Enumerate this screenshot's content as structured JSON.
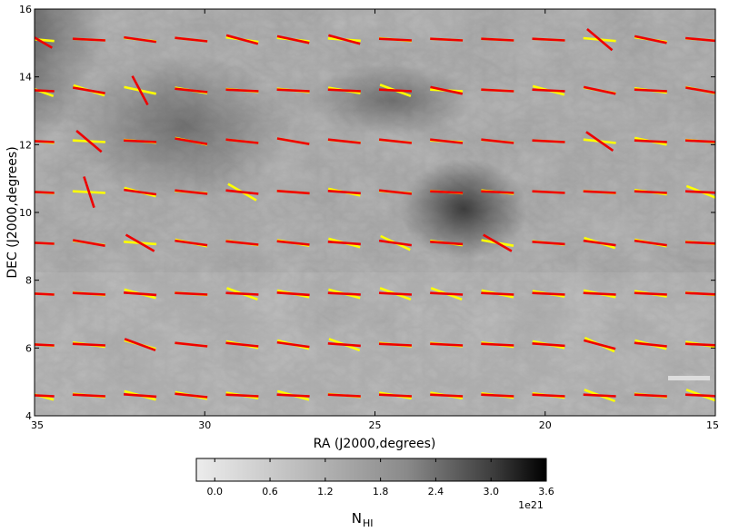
{
  "chart_data": {
    "type": "heatmap",
    "title": "",
    "xlabel": "RA (J2000,degrees)",
    "ylabel": "DEC (J2000,degrees)",
    "xlim": [
      35,
      15
    ],
    "ylim": [
      4,
      16
    ],
    "x_ticks": [
      35,
      30,
      25,
      20,
      15
    ],
    "y_ticks": [
      4,
      6,
      8,
      10,
      12,
      14,
      16
    ],
    "x_tick_labels": [
      "35",
      "30",
      "25",
      "20",
      "15"
    ],
    "y_tick_labels": [
      "4",
      "6",
      "8",
      "10",
      "12",
      "14",
      "16"
    ],
    "colormap": "gray_r",
    "colorbar": {
      "label": "N",
      "label_sub": "HI",
      "min": -0.2,
      "max": 3.6,
      "ticks": [
        0.0,
        0.6,
        1.2,
        1.8,
        2.4,
        3.0,
        3.6
      ],
      "tick_labels": [
        "0.0",
        "0.6",
        "1.2",
        "1.8",
        "2.4",
        "3.0",
        "3.6"
      ],
      "exponent_label": "1e21"
    },
    "vector_grid": {
      "ra": [
        34.9,
        33.4,
        31.9,
        30.4,
        28.9,
        27.4,
        25.9,
        24.4,
        22.9,
        21.4,
        19.9,
        18.4,
        16.9,
        15.4
      ],
      "dec": [
        15.1,
        13.6,
        12.1,
        10.6,
        9.1,
        7.6,
        6.1,
        4.6
      ],
      "series": [
        {
          "name": "yellow",
          "color": "#ffff00",
          "angles_deg": [
            [
              -5,
              -3,
              -6,
              -6,
              -8,
              -6,
              -4,
              -5,
              -3,
              -3,
              -3,
              -5,
              -8,
              -4
            ],
            [
              -20,
              -18,
              -12,
              -10,
              -5,
              -6,
              -10,
              -20,
              -3,
              -3,
              -15,
              -10,
              -8,
              -12
            ],
            [
              -6,
              -3,
              -5,
              -12,
              -6,
              -10,
              -5,
              -5,
              -3,
              -5,
              -3,
              -6,
              -12,
              -5
            ],
            [
              -4,
              -3,
              -15,
              -4,
              -30,
              -4,
              -12,
              -4,
              -4,
              -6,
              -3,
              -4,
              -8,
              -22
            ],
            [
              -3,
              -8,
              -4,
              -12,
              -8,
              -10,
              -15,
              -25,
              -8,
              -10,
              -6,
              -18,
              -12,
              -5
            ],
            [
              -3,
              -5,
              -15,
              -4,
              -20,
              -12,
              -15,
              -20,
              -20,
              -12,
              -10,
              -12,
              -10,
              -5
            ],
            [
              -4,
              -8,
              -15,
              -6,
              -12,
              -15,
              -20,
              -6,
              -6,
              -8,
              -12,
              -25,
              -15,
              -10
            ],
            [
              -15,
              -6,
              -15,
              -12,
              -10,
              -15,
              -5,
              -10,
              -10,
              -8,
              -8,
              -20,
              -6,
              -20
            ]
          ]
        },
        {
          "name": "red",
          "color": "#ee0000",
          "angles_deg": [
            [
              -30,
              -3,
              -8,
              -6,
              -15,
              -12,
              -15,
              -3,
              -3,
              -3,
              -3,
              -40,
              -12,
              -5
            ],
            [
              -3,
              -10,
              -62,
              -6,
              -3,
              -3,
              -3,
              -3,
              -12,
              -3,
              -3,
              -12,
              -3,
              -10
            ],
            [
              -3,
              -40,
              -3,
              -10,
              -6,
              -10,
              -6,
              -6,
              -6,
              -6,
              -3,
              -35,
              -3,
              -3
            ],
            [
              -3,
              -72,
              -8,
              -6,
              -6,
              -4,
              -4,
              -6,
              -3,
              -3,
              -3,
              -3,
              -3,
              -3
            ],
            [
              -3,
              -10,
              -30,
              -8,
              -6,
              -6,
              -4,
              -8,
              -4,
              -30,
              -4,
              -8,
              -8,
              -3
            ],
            [
              -3,
              -3,
              -4,
              -3,
              -3,
              -4,
              -3,
              -3,
              -3,
              -3,
              -3,
              -3,
              -3,
              -3
            ],
            [
              -3,
              -3,
              -20,
              -6,
              -6,
              -8,
              -4,
              -3,
              -3,
              -3,
              -4,
              -15,
              -6,
              -3
            ],
            [
              -3,
              -3,
              -4,
              -6,
              -3,
              -3,
              -3,
              -3,
              -3,
              -3,
              -3,
              -3,
              -3,
              -3
            ]
          ]
        }
      ]
    },
    "colors": {
      "yellow_vectors": "#ffff00",
      "red_vectors": "#ee0000",
      "scale_bar": "#dddddd"
    },
    "grid": false
  }
}
